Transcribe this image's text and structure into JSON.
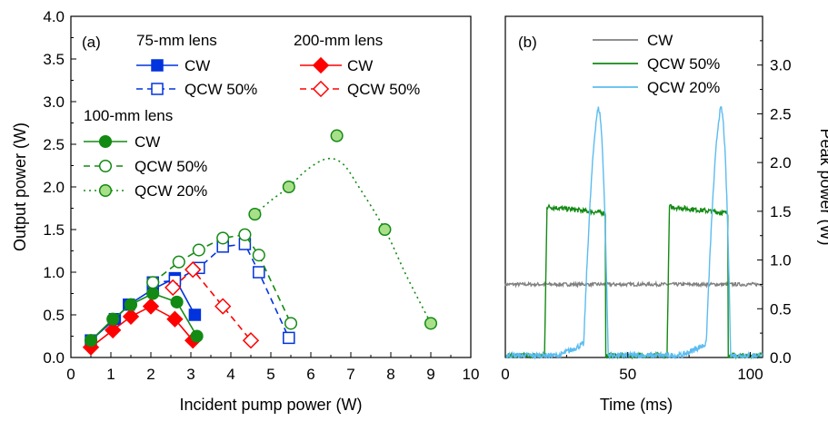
{
  "chart_data": [
    {
      "type": "line",
      "panel_label": "(a)",
      "xlabel": "Incident pump power (W)",
      "ylabel": "Output power (W)",
      "xlim": [
        0,
        10
      ],
      "ylim": [
        0,
        4
      ],
      "xticks": [
        "0",
        "1",
        "2",
        "3",
        "4",
        "5",
        "6",
        "7",
        "8",
        "9",
        "10"
      ],
      "yticks": [
        "0.0",
        "0.5",
        "1.0",
        "1.5",
        "2.0",
        "2.5",
        "3.0",
        "3.5",
        "4.0"
      ],
      "legend_groups": [
        {
          "title": "75-mm lens"
        },
        {
          "title": "200-mm lens"
        },
        {
          "title": "100-mm lens"
        }
      ],
      "series": [
        {
          "name": "CW",
          "group": "75-mm lens",
          "color": "#0033dd",
          "marker": "square",
          "filled": true,
          "line": "solid",
          "x": [
            0.5,
            1.1,
            1.45,
            2.05,
            2.6,
            3.1
          ],
          "y": [
            0.2,
            0.45,
            0.62,
            0.8,
            0.93,
            0.5
          ]
        },
        {
          "name": "QCW 50%",
          "group": "75-mm lens",
          "color": "#0033dd",
          "marker": "square",
          "filled": false,
          "line": "dashed",
          "x": [
            2.05,
            2.6,
            3.2,
            3.8,
            4.35,
            4.7,
            5.45
          ],
          "y": [
            0.88,
            0.9,
            1.05,
            1.3,
            1.33,
            1.0,
            0.23
          ]
        },
        {
          "name": "CW",
          "group": "200-mm lens",
          "color": "#ff0000",
          "marker": "diamond",
          "filled": true,
          "line": "solid",
          "x": [
            0.5,
            1.05,
            1.5,
            2.0,
            2.6,
            3.05
          ],
          "y": [
            0.12,
            0.32,
            0.48,
            0.6,
            0.45,
            0.2
          ]
        },
        {
          "name": "QCW 50%",
          "group": "200-mm lens",
          "color": "#ff0000",
          "marker": "diamond",
          "filled": false,
          "line": "dashed",
          "x": [
            2.55,
            3.05,
            3.8,
            4.5
          ],
          "y": [
            0.82,
            1.03,
            0.6,
            0.2
          ]
        },
        {
          "name": "CW",
          "group": "100-mm lens",
          "color": "#138a13",
          "marker": "circle",
          "filled": true,
          "line": "solid",
          "x": [
            0.5,
            1.05,
            1.5,
            2.05,
            2.65,
            3.15
          ],
          "y": [
            0.2,
            0.45,
            0.62,
            0.75,
            0.65,
            0.25
          ]
        },
        {
          "name": "QCW 50%",
          "group": "100-mm lens",
          "color": "#138a13",
          "marker": "circle",
          "filled": false,
          "line": "dashed",
          "x": [
            2.05,
            2.7,
            3.2,
            3.8,
            4.35,
            4.7,
            5.5
          ],
          "y": [
            0.88,
            1.12,
            1.26,
            1.4,
            1.44,
            1.2,
            0.4
          ]
        },
        {
          "name": "QCW 20%",
          "group": "100-mm lens",
          "color": "#138a13",
          "fill": "#a8e08a",
          "marker": "circle",
          "filled": true,
          "line": "dotted",
          "x": [
            4.6,
            5.45,
            6.65,
            7.85,
            9.0
          ],
          "y": [
            1.68,
            2.0,
            2.6,
            1.5,
            0.4
          ],
          "curve": {
            "x": [
              4.6,
              5.0,
              5.45,
              5.9,
              6.4,
              6.8,
              7.2,
              7.85,
              8.4,
              9.0
            ],
            "y": [
              1.68,
              1.84,
              2.0,
              2.2,
              2.33,
              2.27,
              2.0,
              1.5,
              0.95,
              0.4
            ]
          }
        }
      ]
    },
    {
      "type": "line",
      "panel_label": "(b)",
      "xlabel": "Time (ms)",
      "ylabel": "Peak power (W)",
      "xlim": [
        0,
        105
      ],
      "ylim": [
        0,
        3.5
      ],
      "xticks": [
        "0",
        "50",
        "100"
      ],
      "yticks": [
        "0.0",
        "0.5",
        "1.0",
        "1.5",
        "2.0",
        "2.5",
        "3.0"
      ],
      "legend_placement": "top-left",
      "series": [
        {
          "name": "CW",
          "color": "#808080",
          "level": 0.75
        },
        {
          "name": "QCW 50%",
          "color": "#138a13",
          "period_ms": 50,
          "on_ms": 25,
          "first_on_ms": 16,
          "peak": 1.55,
          "flat": 1.48
        },
        {
          "name": "QCW 20%",
          "color": "#5bbcf0",
          "period_ms": 50,
          "on_ms": 10,
          "first_on_ms": 32,
          "peak": 2.55
        }
      ]
    }
  ]
}
